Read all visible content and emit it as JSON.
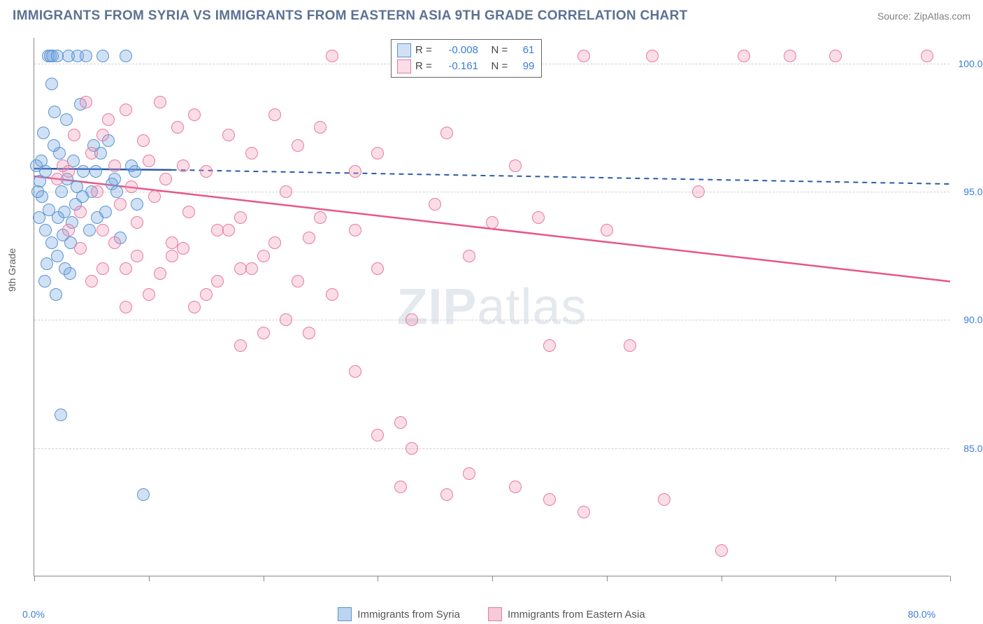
{
  "header": {
    "title": "IMMIGRANTS FROM SYRIA VS IMMIGRANTS FROM EASTERN ASIA 9TH GRADE CORRELATION CHART",
    "source": "Source: ZipAtlas.com"
  },
  "chart": {
    "type": "scatter",
    "watermark": {
      "zip": "ZIP",
      "atlas": "atlas"
    },
    "y_axis_label": "9th Grade",
    "xlim": [
      0,
      80
    ],
    "ylim": [
      80,
      101
    ],
    "x_ticks": [
      0,
      10,
      20,
      30,
      40,
      50,
      60,
      70,
      80
    ],
    "x_tick_labels": {
      "0": "0.0%",
      "80": "80.0%"
    },
    "y_ticks": [
      85,
      90,
      95,
      100
    ],
    "y_tick_labels": {
      "85": "85.0%",
      "90": "90.0%",
      "95": "95.0%",
      "100": "100.0%"
    },
    "grid_color": "#d0d0d0",
    "background_color": "#ffffff",
    "marker_radius": 9,
    "series": [
      {
        "id": "syria",
        "name": "Immigrants from Syria",
        "fill": "rgba(120,170,225,0.35)",
        "stroke": "#5a93d0",
        "r_value": "-0.008",
        "n_value": "61",
        "trend": {
          "x1": 0,
          "y1": 95.9,
          "x2": 12,
          "y2": 95.85,
          "x2_dash": 80,
          "y2_dash": 95.3,
          "color": "#2a5aa8",
          "width": 2.5,
          "dash": "7,6"
        },
        "points": [
          [
            0.5,
            95.4
          ],
          [
            0.6,
            96.2
          ],
          [
            0.7,
            94.8
          ],
          [
            0.8,
            97.3
          ],
          [
            1.0,
            93.5
          ],
          [
            1.2,
            100.3
          ],
          [
            1.4,
            100.3
          ],
          [
            1.5,
            99.2
          ],
          [
            1.6,
            100.3
          ],
          [
            1.8,
            98.1
          ],
          [
            2.0,
            100.3
          ],
          [
            2.2,
            96.5
          ],
          [
            2.4,
            95.0
          ],
          [
            2.6,
            94.2
          ],
          [
            2.8,
            97.8
          ],
          [
            3.0,
            100.3
          ],
          [
            3.2,
            93.0
          ],
          [
            3.4,
            96.2
          ],
          [
            3.6,
            94.5
          ],
          [
            3.8,
            100.3
          ],
          [
            4.0,
            98.4
          ],
          [
            4.5,
            100.3
          ],
          [
            5.0,
            95.0
          ],
          [
            5.2,
            96.8
          ],
          [
            5.5,
            94.0
          ],
          [
            6.0,
            100.3
          ],
          [
            6.5,
            97.0
          ],
          [
            7.0,
            95.5
          ],
          [
            7.5,
            93.2
          ],
          [
            8.0,
            100.3
          ],
          [
            8.5,
            96.0
          ],
          [
            9.0,
            94.5
          ],
          [
            1.0,
            95.8
          ],
          [
            1.3,
            94.3
          ],
          [
            1.7,
            96.8
          ],
          [
            2.1,
            94.0
          ],
          [
            2.5,
            93.3
          ],
          [
            2.9,
            95.5
          ],
          [
            3.3,
            93.8
          ],
          [
            3.7,
            95.2
          ],
          [
            4.2,
            94.8
          ],
          [
            4.8,
            93.5
          ],
          [
            5.4,
            95.8
          ],
          [
            6.2,
            94.2
          ],
          [
            6.8,
            95.3
          ],
          [
            1.1,
            92.2
          ],
          [
            1.9,
            91.0
          ],
          [
            0.9,
            91.5
          ],
          [
            2.3,
            86.3
          ],
          [
            9.5,
            83.2
          ],
          [
            1.5,
            93.0
          ],
          [
            2.0,
            92.5
          ],
          [
            2.7,
            92.0
          ],
          [
            3.1,
            91.8
          ],
          [
            0.4,
            94.0
          ],
          [
            0.3,
            95.0
          ],
          [
            0.2,
            96.0
          ],
          [
            4.3,
            95.8
          ],
          [
            5.8,
            96.5
          ],
          [
            7.2,
            95.0
          ],
          [
            8.8,
            95.8
          ]
        ]
      },
      {
        "id": "eastern_asia",
        "name": "Immigrants from Eastern Asia",
        "fill": "rgba(240,150,180,0.32)",
        "stroke": "#e67aa3",
        "r_value": "-0.161",
        "n_value": "99",
        "trend": {
          "x1": 0,
          "y1": 95.6,
          "x2": 80,
          "y2": 91.5,
          "color": "#e8558b",
          "width": 2.5,
          "dash": "none"
        },
        "points": [
          [
            2.0,
            95.5
          ],
          [
            2.5,
            96.0
          ],
          [
            3.0,
            95.8
          ],
          [
            3.5,
            97.2
          ],
          [
            4.0,
            94.2
          ],
          [
            4.5,
            98.5
          ],
          [
            5.0,
            96.5
          ],
          [
            5.5,
            95.0
          ],
          [
            6.0,
            93.5
          ],
          [
            6.5,
            97.8
          ],
          [
            7.0,
            96.0
          ],
          [
            7.5,
            94.5
          ],
          [
            8.0,
            98.2
          ],
          [
            8.5,
            95.2
          ],
          [
            9.0,
            93.8
          ],
          [
            9.5,
            97.0
          ],
          [
            10.0,
            96.2
          ],
          [
            10.5,
            94.8
          ],
          [
            11.0,
            98.5
          ],
          [
            11.5,
            95.5
          ],
          [
            12.0,
            93.0
          ],
          [
            12.5,
            97.5
          ],
          [
            13.0,
            96.0
          ],
          [
            13.5,
            94.2
          ],
          [
            14.0,
            98.0
          ],
          [
            15.0,
            95.8
          ],
          [
            16.0,
            93.5
          ],
          [
            17.0,
            97.2
          ],
          [
            18.0,
            94.0
          ],
          [
            19.0,
            96.5
          ],
          [
            20.0,
            92.5
          ],
          [
            21.0,
            98.0
          ],
          [
            22.0,
            95.0
          ],
          [
            23.0,
            96.8
          ],
          [
            24.0,
            93.2
          ],
          [
            25.0,
            97.5
          ],
          [
            26.0,
            100.3
          ],
          [
            18.0,
            92.0
          ],
          [
            20.0,
            89.5
          ],
          [
            8.0,
            92.0
          ],
          [
            10.0,
            91.0
          ],
          [
            12.0,
            92.5
          ],
          [
            14.0,
            90.5
          ],
          [
            16.0,
            91.5
          ],
          [
            18.0,
            89.0
          ],
          [
            22.0,
            90.0
          ],
          [
            24.0,
            89.5
          ],
          [
            26.0,
            91.0
          ],
          [
            28.0,
            88.0
          ],
          [
            28.0,
            93.5
          ],
          [
            28.0,
            95.8
          ],
          [
            30.0,
            85.5
          ],
          [
            30.0,
            92.0
          ],
          [
            30.0,
            96.5
          ],
          [
            32.0,
            100.3
          ],
          [
            32.0,
            86.0
          ],
          [
            32.0,
            83.5
          ],
          [
            33.0,
            85.0
          ],
          [
            33.0,
            90.0
          ],
          [
            35.0,
            94.5
          ],
          [
            36.0,
            97.3
          ],
          [
            36.0,
            83.2
          ],
          [
            38.0,
            84.0
          ],
          [
            38.0,
            92.5
          ],
          [
            40.0,
            100.3
          ],
          [
            40.0,
            93.8
          ],
          [
            42.0,
            83.5
          ],
          [
            42.0,
            96.0
          ],
          [
            44.0,
            94.0
          ],
          [
            45.0,
            89.0
          ],
          [
            45.0,
            83.0
          ],
          [
            48.0,
            100.3
          ],
          [
            48.0,
            82.5
          ],
          [
            50.0,
            93.5
          ],
          [
            52.0,
            89.0
          ],
          [
            54.0,
            100.3
          ],
          [
            55.0,
            83.0
          ],
          [
            58.0,
            95.0
          ],
          [
            60.0,
            81.0
          ],
          [
            62.0,
            100.3
          ],
          [
            66.0,
            100.3
          ],
          [
            70.0,
            100.3
          ],
          [
            78.0,
            100.3
          ],
          [
            3.0,
            93.5
          ],
          [
            4.0,
            92.8
          ],
          [
            5.0,
            91.5
          ],
          [
            6.0,
            92.0
          ],
          [
            7.0,
            93.0
          ],
          [
            8.0,
            90.5
          ],
          [
            9.0,
            92.5
          ],
          [
            11.0,
            91.8
          ],
          [
            13.0,
            92.8
          ],
          [
            15.0,
            91.0
          ],
          [
            17.0,
            93.5
          ],
          [
            19.0,
            92.0
          ],
          [
            21.0,
            93.0
          ],
          [
            23.0,
            91.5
          ],
          [
            25.0,
            94.0
          ],
          [
            6.0,
            97.2
          ]
        ]
      }
    ],
    "bottom_legend": [
      {
        "swatch_fill": "rgba(120,170,225,0.5)",
        "swatch_stroke": "#5a93d0",
        "label": "Immigrants from Syria"
      },
      {
        "swatch_fill": "rgba(240,150,180,0.5)",
        "swatch_stroke": "#e67aa3",
        "label": "Immigrants from Eastern Asia"
      }
    ]
  }
}
